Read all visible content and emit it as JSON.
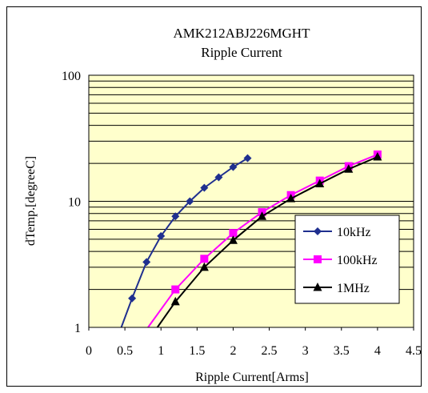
{
  "chart_data": {
    "type": "line",
    "title": "AMK212ABJ226MGHT",
    "subtitle": "Ripple Current",
    "xlabel": "Ripple Current[Arms]",
    "ylabel": "dTemp.[degreeC]",
    "xlim": [
      0,
      4.5
    ],
    "ylim": [
      1,
      100
    ],
    "yscale": "log",
    "grid": true,
    "legend_position": "right",
    "plot_background": "#ffffcc",
    "x_ticks": [
      "0",
      "0.5",
      "1",
      "1.5",
      "2",
      "2.5",
      "3",
      "3.5",
      "4",
      "4.5"
    ],
    "x_tick_values": [
      0,
      0.5,
      1,
      1.5,
      2,
      2.5,
      3,
      3.5,
      4,
      4.5
    ],
    "y_ticks": [
      "1",
      "10",
      "100"
    ],
    "y_tick_values": [
      1,
      10,
      100
    ],
    "series": [
      {
        "name": "10kHz",
        "color": "#1f2f8f",
        "marker": "diamond",
        "x": [
          0.6,
          0.8,
          1.0,
          1.2,
          1.4,
          1.6,
          1.8,
          2.0,
          2.2
        ],
        "y": [
          1.7,
          3.3,
          5.3,
          7.6,
          10.0,
          12.8,
          15.5,
          18.7,
          22.0
        ],
        "line_start": [
          0.45,
          1.0
        ]
      },
      {
        "name": "100kHz",
        "color": "#ff00ff",
        "marker": "square",
        "x": [
          1.2,
          1.6,
          2.0,
          2.4,
          2.8,
          3.2,
          3.6,
          4.0
        ],
        "y": [
          2.0,
          3.5,
          5.6,
          8.2,
          11.2,
          14.6,
          19.0,
          23.5
        ],
        "line_start": [
          0.82,
          1.0
        ]
      },
      {
        "name": "1MHz",
        "color": "#000000",
        "marker": "triangle",
        "x": [
          1.2,
          1.6,
          2.0,
          2.4,
          2.8,
          3.2,
          3.6,
          4.0
        ],
        "y": [
          1.6,
          3.0,
          4.9,
          7.6,
          10.5,
          13.8,
          18.0,
          22.5
        ],
        "line_start": [
          0.95,
          1.0
        ]
      }
    ]
  }
}
